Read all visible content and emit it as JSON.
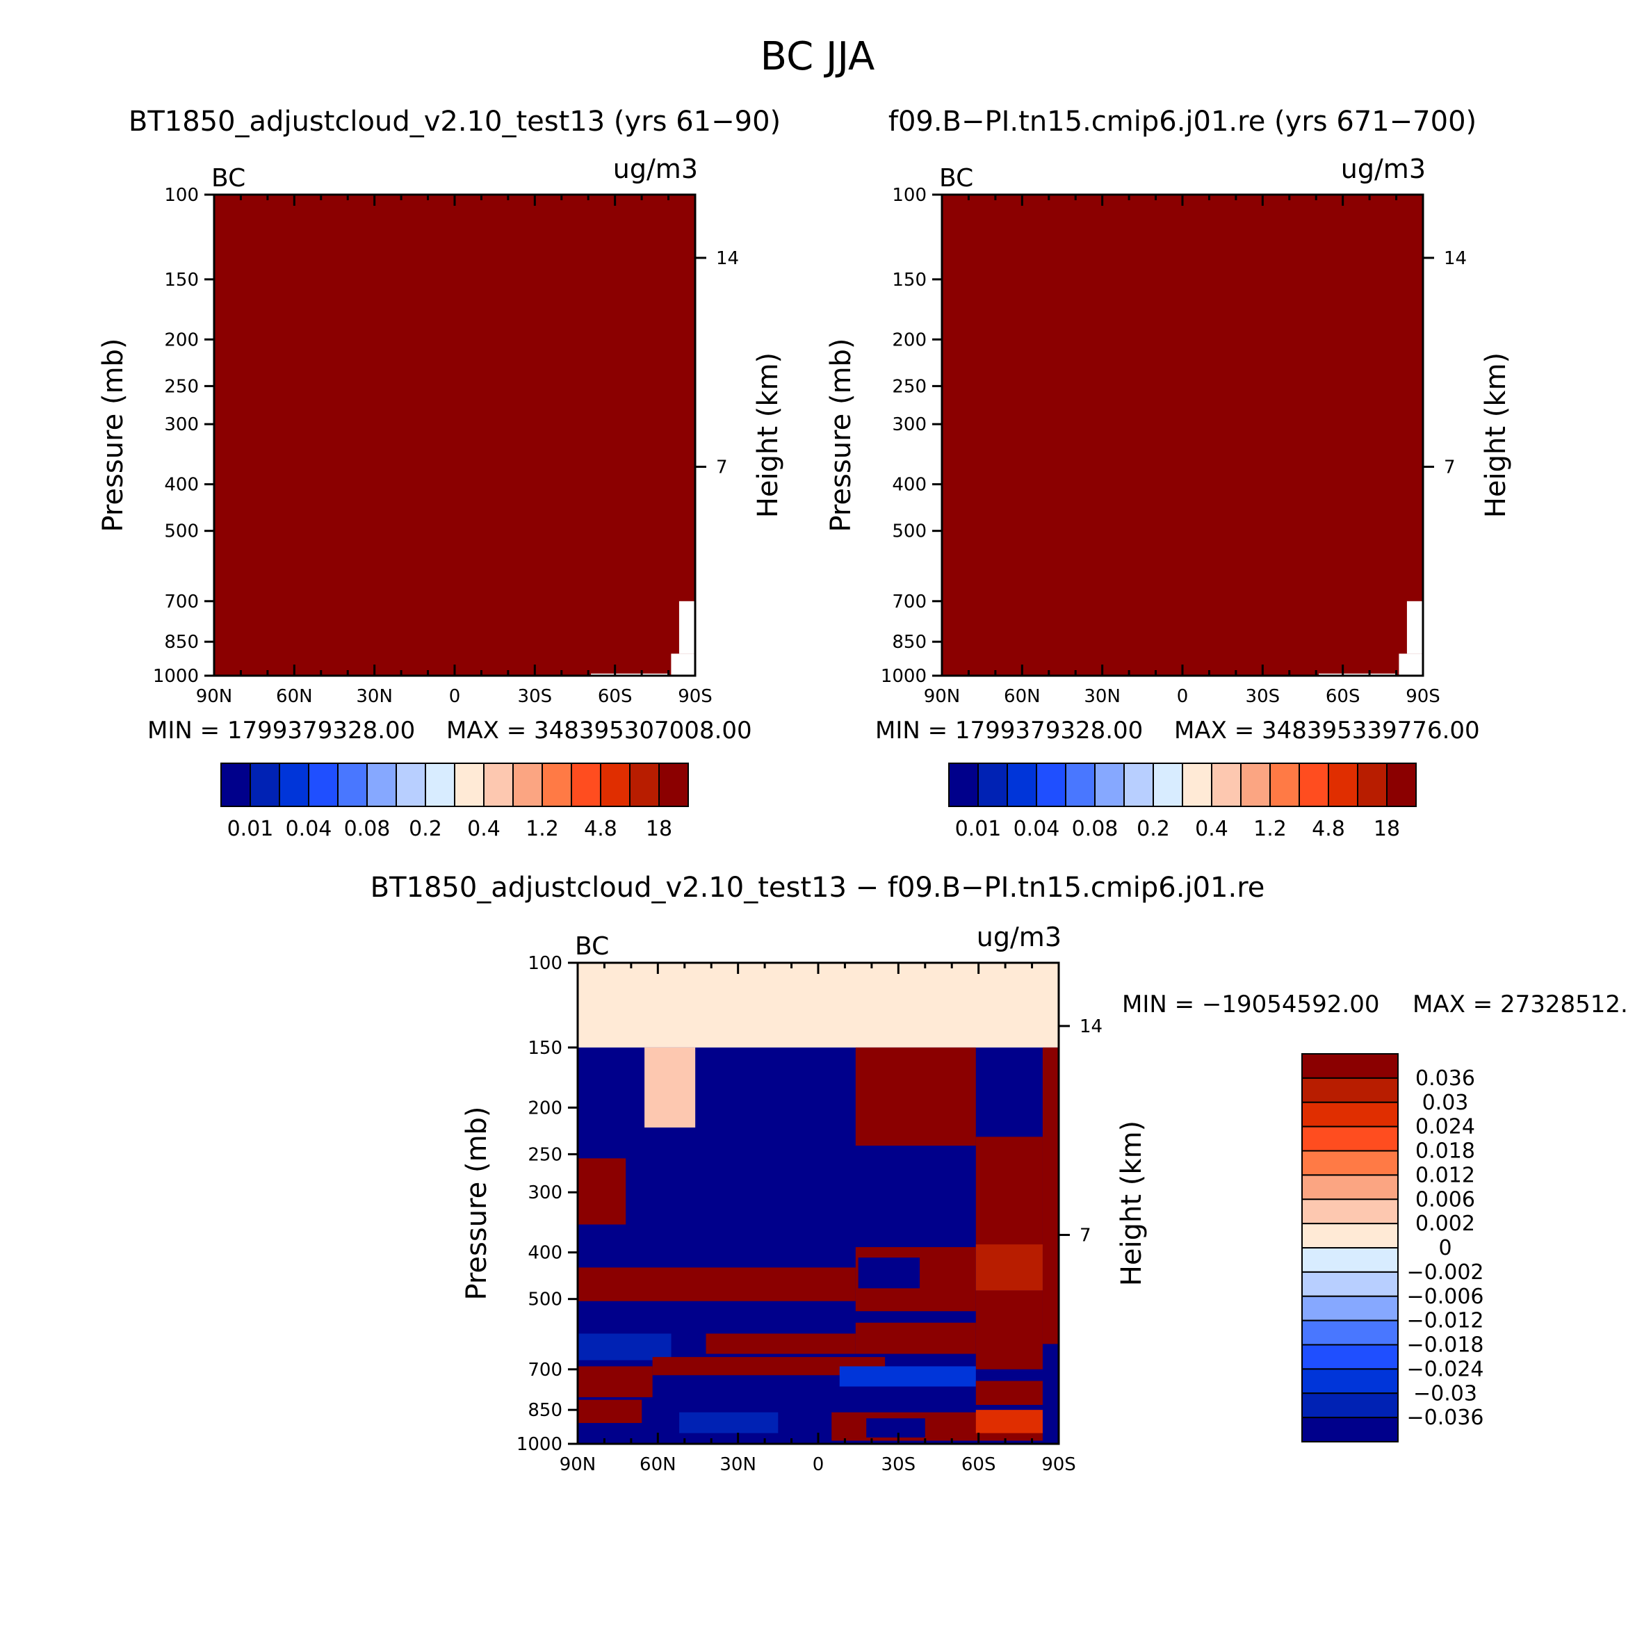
{
  "figure_title": "BC JJA",
  "chart_data": [
    {
      "type": "heatmap",
      "id": "panel1",
      "title": "BT1850_adjustcloud_v2.10_test13 (yrs 61−90)",
      "variable_label": "BC",
      "units_label": "ug/m3",
      "ylabel_left": "Pressure (mb)",
      "ylabel_right": "Height (km)",
      "x_ticks": [
        "90N",
        "60N",
        "30N",
        "0",
        "30S",
        "60S",
        "90S"
      ],
      "x_values": [
        90,
        60,
        30,
        0,
        -30,
        -60,
        -90
      ],
      "y_ticks": [
        "100",
        "150",
        "200",
        "250",
        "300",
        "400",
        "500",
        "700",
        "850",
        "1000"
      ],
      "y_values": [
        100,
        150,
        200,
        250,
        300,
        400,
        500,
        700,
        850,
        1000
      ],
      "height_ticks": [
        "14",
        "7"
      ],
      "height_values": [
        14,
        7
      ],
      "ylim": [
        100,
        1000
      ],
      "fill_color": "#8b0000",
      "min_label": "MIN = 1799379328.00",
      "max_label": "MAX = 348395307008.00",
      "colorbar": {
        "colors": [
          "#00008b",
          "#0022b4",
          "#0035d9",
          "#1f4fff",
          "#4977ff",
          "#86a8ff",
          "#b8cfff",
          "#d8ecff",
          "#ffead6",
          "#fdc8b0",
          "#fba582",
          "#ff7a45",
          "#ff4d1f",
          "#e02e00",
          "#b81d00",
          "#8b0000"
        ],
        "labels": [
          "0.01",
          "0.04",
          "0.08",
          "0.2",
          "0.4",
          "1.2",
          "4.8",
          "18"
        ]
      }
    },
    {
      "type": "heatmap",
      "id": "panel2",
      "title": "f09.B−PI.tn15.cmip6.j01.re (yrs 671−700)",
      "variable_label": "BC",
      "units_label": "ug/m3",
      "ylabel_left": "Pressure (mb)",
      "ylabel_right": "Height (km)",
      "x_ticks": [
        "90N",
        "60N",
        "30N",
        "0",
        "30S",
        "60S",
        "90S"
      ],
      "x_values": [
        90,
        60,
        30,
        0,
        -30,
        -60,
        -90
      ],
      "y_ticks": [
        "100",
        "150",
        "200",
        "250",
        "300",
        "400",
        "500",
        "700",
        "850",
        "1000"
      ],
      "y_values": [
        100,
        150,
        200,
        250,
        300,
        400,
        500,
        700,
        850,
        1000
      ],
      "height_ticks": [
        "14",
        "7"
      ],
      "height_values": [
        14,
        7
      ],
      "ylim": [
        100,
        1000
      ],
      "fill_color": "#8b0000",
      "min_label": "MIN = 1799379328.00",
      "max_label": "MAX = 348395339776.00",
      "colorbar": {
        "colors": [
          "#00008b",
          "#0022b4",
          "#0035d9",
          "#1f4fff",
          "#4977ff",
          "#86a8ff",
          "#b8cfff",
          "#d8ecff",
          "#ffead6",
          "#fdc8b0",
          "#fba582",
          "#ff7a45",
          "#ff4d1f",
          "#e02e00",
          "#b81d00",
          "#8b0000"
        ],
        "labels": [
          "0.01",
          "0.04",
          "0.08",
          "0.2",
          "0.4",
          "1.2",
          "4.8",
          "18"
        ]
      }
    },
    {
      "type": "heatmap",
      "id": "panel3",
      "title": "BT1850_adjustcloud_v2.10_test13 − f09.B−PI.tn15.cmip6.j01.re",
      "variable_label": "BC",
      "units_label": "ug/m3",
      "ylabel_left": "Pressure (mb)",
      "ylabel_right": "Height (km)",
      "x_ticks": [
        "90N",
        "60N",
        "30N",
        "0",
        "30S",
        "60S",
        "90S"
      ],
      "x_values": [
        90,
        60,
        30,
        0,
        -30,
        -60,
        -90
      ],
      "y_ticks": [
        "100",
        "150",
        "200",
        "250",
        "300",
        "400",
        "500",
        "700",
        "850",
        "1000"
      ],
      "y_values": [
        100,
        150,
        200,
        250,
        300,
        400,
        500,
        700,
        850,
        1000
      ],
      "height_ticks": [
        "14",
        "7"
      ],
      "height_values": [
        14,
        7
      ],
      "ylim": [
        100,
        1000
      ],
      "min_label": "MIN = −19054592.00",
      "max_label": "MAX = 27328512.",
      "colorbar": {
        "colors": [
          "#8b0000",
          "#b81d00",
          "#e02e00",
          "#ff4d1f",
          "#ff7a45",
          "#fba582",
          "#fdc8b0",
          "#ffead6",
          "#d8ecff",
          "#b8cfff",
          "#86a8ff",
          "#4977ff",
          "#1f4fff",
          "#0035d9",
          "#0022b4",
          "#00008b"
        ],
        "labels": [
          "0.036",
          "0.03",
          "0.024",
          "0.018",
          "0.012",
          "0.006",
          "0.002",
          "0",
          "−0.002",
          "−0.006",
          "−0.012",
          "−0.018",
          "−0.024",
          "−0.03",
          "−0.036"
        ]
      },
      "regions": [
        {
          "c": "#ffead6",
          "lat": [
            90,
            -90
          ],
          "p": [
            100,
            150
          ]
        },
        {
          "c": "#00008b",
          "lat": [
            90,
            -90
          ],
          "p": [
            150,
            1000
          ]
        },
        {
          "c": "#fdc8b0",
          "lat": [
            65,
            46
          ],
          "p": [
            150,
            220
          ]
        },
        {
          "c": "#8b0000",
          "lat": [
            -14,
            -59
          ],
          "p": [
            150,
            240
          ]
        },
        {
          "c": "#8b0000",
          "lat": [
            -84,
            -90
          ],
          "p": [
            150,
            620
          ]
        },
        {
          "c": "#8b0000",
          "lat": [
            90,
            72
          ],
          "p": [
            255,
            350
          ]
        },
        {
          "c": "#8b0000",
          "lat": [
            -59,
            -84
          ],
          "p": [
            230,
            390
          ]
        },
        {
          "c": "#8b0000",
          "lat": [
            -14,
            -59
          ],
          "p": [
            390,
            530
          ]
        },
        {
          "c": "#00008b",
          "lat": [
            -15,
            -38
          ],
          "p": [
            410,
            475
          ]
        },
        {
          "c": "#b81d00",
          "lat": [
            -59,
            -84
          ],
          "p": [
            385,
            480
          ]
        },
        {
          "c": "#8b0000",
          "lat": [
            90,
            -14
          ],
          "p": [
            430,
            505
          ]
        },
        {
          "c": "#8b0000",
          "lat": [
            -59,
            -84
          ],
          "p": [
            480,
            700
          ]
        },
        {
          "c": "#8b0000",
          "lat": [
            -14,
            -59
          ],
          "p": [
            560,
            650
          ]
        },
        {
          "c": "#8b0000",
          "lat": [
            42,
            -14
          ],
          "p": [
            590,
            650
          ]
        },
        {
          "c": "#0022b4",
          "lat": [
            90,
            55
          ],
          "p": [
            590,
            670
          ]
        },
        {
          "c": "#8b0000",
          "lat": [
            90,
            62
          ],
          "p": [
            690,
            800
          ]
        },
        {
          "c": "#8b0000",
          "lat": [
            62,
            -25
          ],
          "p": [
            660,
            720
          ]
        },
        {
          "c": "#0035d9",
          "lat": [
            -8,
            -59
          ],
          "p": [
            690,
            760
          ]
        },
        {
          "c": "#8b0000",
          "lat": [
            -59,
            -84
          ],
          "p": [
            740,
            830
          ]
        },
        {
          "c": "#8b0000",
          "lat": [
            90,
            66
          ],
          "p": [
            810,
            905
          ]
        },
        {
          "c": "#0022b4",
          "lat": [
            52,
            15
          ],
          "p": [
            860,
            950
          ]
        },
        {
          "c": "#8b0000",
          "lat": [
            -5,
            -84
          ],
          "p": [
            860,
            985
          ]
        },
        {
          "c": "#00008b",
          "lat": [
            -18,
            -40
          ],
          "p": [
            885,
            970
          ]
        },
        {
          "c": "#e02e00",
          "lat": [
            -59,
            -84
          ],
          "p": [
            850,
            950
          ]
        }
      ]
    }
  ]
}
